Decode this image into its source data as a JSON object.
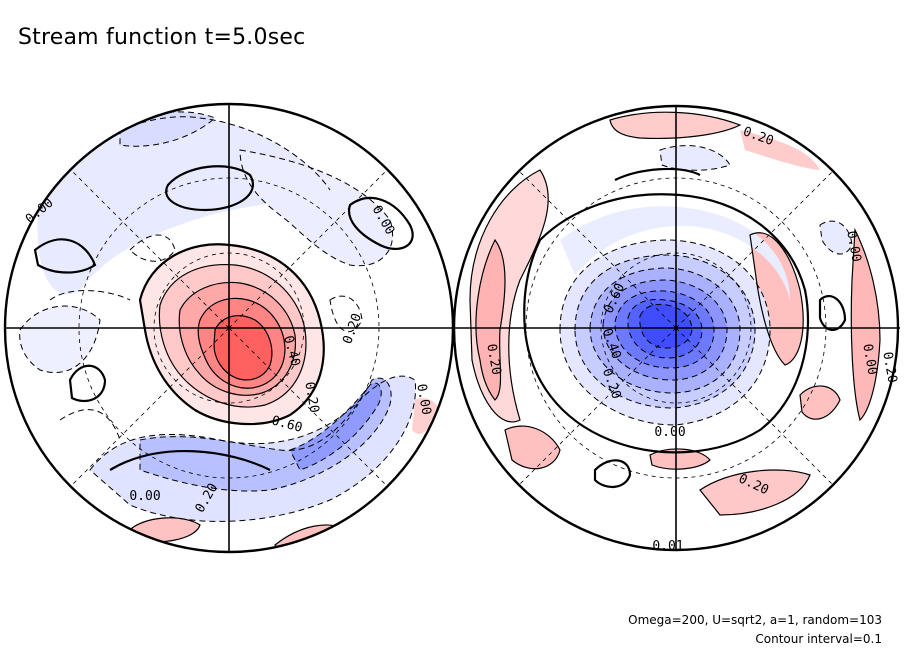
{
  "header": {
    "title": "Stream function t=5.0sec"
  },
  "footer": {
    "params": "Omega=200, U=sqrt2, a=1, random=103",
    "interval": "Contour interval=0.1"
  },
  "chart_data": {
    "type": "contour",
    "variable": "Stream function",
    "time": "t=5.0sec",
    "contour_interval": 0.1,
    "projection": "polar (two hemispheres)",
    "colors": {
      "positive": "#ff5050",
      "negative": "#4a5cff",
      "zero": "#ffffff"
    },
    "panels": [
      {
        "name": "left",
        "features": [
          {
            "kind": "max",
            "value": 0.7,
            "location": "near pole, slightly lower-right"
          },
          {
            "kind": "min",
            "value": -0.3,
            "location": "arc lower-right"
          }
        ],
        "labels": [
          {
            "text": "0.00",
            "angle": -40
          },
          {
            "text": "0.00",
            "angle": 60
          },
          {
            "text": "0.40",
            "angle": 75
          },
          {
            "text": "0.20",
            "angle": -70
          },
          {
            "text": "0.20",
            "angle": 80
          },
          {
            "text": "0.60",
            "angle": 15
          },
          {
            "text": "0.00",
            "angle": 80
          },
          {
            "text": "0.00",
            "angle": 0
          },
          {
            "text": "0.20",
            "angle": -60
          }
        ]
      },
      {
        "name": "right",
        "features": [
          {
            "kind": "min",
            "value": -0.8,
            "location": "pole"
          },
          {
            "kind": "max",
            "value": 0.3,
            "location": "outer ring"
          }
        ],
        "labels": [
          {
            "text": "0.20",
            "angle": 20
          },
          {
            "text": "0.00",
            "angle": 80
          },
          {
            "text": "0.60",
            "angle": -65
          },
          {
            "text": "0.40",
            "angle": 70
          },
          {
            "text": "0.20",
            "angle": 70
          },
          {
            "text": "0.20",
            "angle": 80
          },
          {
            "text": "0.00",
            "angle": 0
          },
          {
            "text": "0.20",
            "angle": 25
          },
          {
            "text": "0.00",
            "angle": 80
          },
          {
            "text": "0.20",
            "angle": 80
          },
          {
            "text": "0.01",
            "angle": 0
          }
        ]
      }
    ]
  }
}
